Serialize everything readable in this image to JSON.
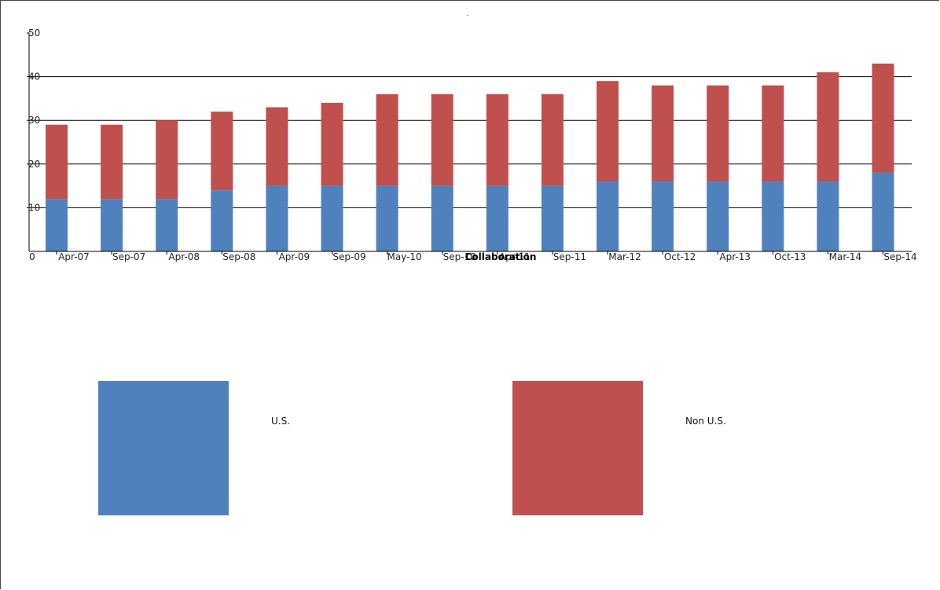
{
  "chart_data": {
    "type": "bar",
    "stacked": true,
    "categories": [
      "Apr-07",
      "Sep-07",
      "Apr-08",
      "Sep-08",
      "Apr-09",
      "Sep-09",
      "May-10",
      "Sep-10",
      "Apr-11",
      "Sep-11",
      "Mar-12",
      "Oct-12",
      "Apr-13",
      "Oct-13",
      "Mar-14",
      "Sep-14"
    ],
    "series": [
      {
        "name": "U.S.",
        "color": "#4f81bd",
        "values": [
          12,
          12,
          12,
          14,
          15,
          15,
          15,
          15,
          15,
          15,
          16,
          16,
          16,
          16,
          16,
          18
        ]
      },
      {
        "name": "Non U.S.",
        "color": "#c0504d",
        "values": [
          17,
          17,
          18,
          18,
          18,
          19,
          21,
          21,
          21,
          21,
          23,
          22,
          22,
          22,
          25,
          25
        ]
      }
    ],
    "title": ".",
    "xlabel": "Collaboration",
    "ylabel": "",
    "ylim": [
      0,
      50
    ],
    "yticks": [
      0,
      10,
      20,
      30,
      40,
      50
    ],
    "grid": true,
    "legend_placement": "bottom"
  }
}
